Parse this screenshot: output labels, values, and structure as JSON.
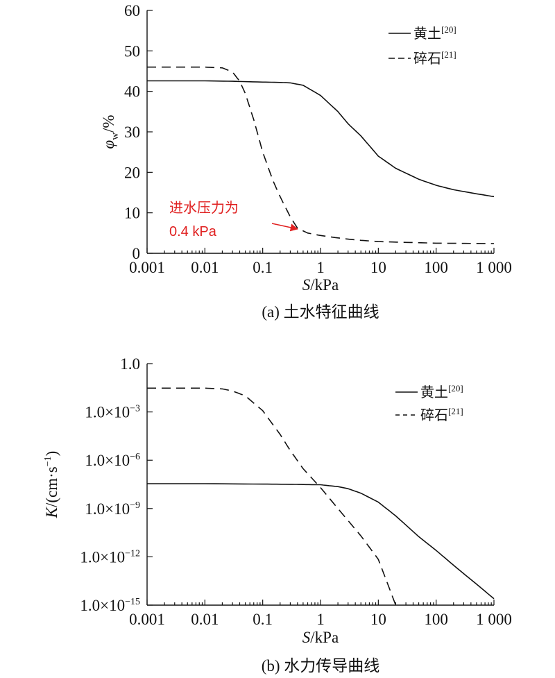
{
  "chart_data": [
    {
      "id": "a",
      "type": "line",
      "caption": "(a) 土水特征曲线",
      "xlabel": "S/kPa",
      "xlabel_parts": {
        "italic": "S",
        "rest": "/kPa"
      },
      "ylabel": "φw/%",
      "ylabel_parts": {
        "sym": "φ",
        "sub": "w",
        "rest": "/%"
      },
      "xscale": "log",
      "xlim": [
        0.001,
        1000
      ],
      "ylim": [
        0,
        60
      ],
      "xticks": [
        {
          "v": 0.001,
          "label": "0.001"
        },
        {
          "v": 0.01,
          "label": "0.01"
        },
        {
          "v": 0.1,
          "label": "0.1"
        },
        {
          "v": 1,
          "label": "1"
        },
        {
          "v": 10,
          "label": "10"
        },
        {
          "v": 100,
          "label": "100"
        },
        {
          "v": 1000,
          "label": "1 000"
        }
      ],
      "yticks": [
        {
          "v": 0,
          "label": "0"
        },
        {
          "v": 10,
          "label": "10"
        },
        {
          "v": 20,
          "label": "20"
        },
        {
          "v": 30,
          "label": "30"
        },
        {
          "v": 40,
          "label": "40"
        },
        {
          "v": 50,
          "label": "50"
        },
        {
          "v": 60,
          "label": "60"
        }
      ],
      "legend_position": "top-right",
      "series": [
        {
          "name": "黄土[20]",
          "label": "黄土",
          "ref": "[20]",
          "style": "solid",
          "x": [
            0.001,
            0.01,
            0.03,
            0.1,
            0.2,
            0.3,
            0.5,
            1,
            2,
            3,
            5,
            10,
            20,
            50,
            100,
            200,
            500,
            1000
          ],
          "y": [
            42.6,
            42.6,
            42.5,
            42.3,
            42.2,
            42.1,
            41.5,
            39,
            35,
            32,
            29,
            24,
            21,
            18.3,
            16.8,
            15.7,
            14.7,
            14
          ]
        },
        {
          "name": "碎石[21]",
          "label": "碎石",
          "ref": "[21]",
          "style": "dashed",
          "x": [
            0.001,
            0.01,
            0.02,
            0.03,
            0.04,
            0.05,
            0.07,
            0.1,
            0.15,
            0.2,
            0.3,
            0.4,
            0.6,
            1,
            2,
            3,
            5,
            10,
            30,
            100,
            1000
          ],
          "y": [
            46,
            46,
            45.8,
            44.8,
            42.5,
            39.5,
            33,
            25,
            18,
            14,
            9,
            6.2,
            5,
            4.4,
            3.8,
            3.5,
            3.2,
            2.9,
            2.7,
            2.5,
            2.4
          ]
        }
      ],
      "annotation": {
        "lines": [
          "进水压力为",
          "0.4 kPa"
        ],
        "color": "#e02020",
        "points_to": {
          "x": 0.4,
          "y": 6
        }
      }
    },
    {
      "id": "b",
      "type": "line",
      "caption": "(b) 水力传导曲线",
      "xlabel": "S/kPa",
      "xlabel_parts": {
        "italic": "S",
        "rest": "/kPa"
      },
      "ylabel": "K/(cm·s⁻¹)",
      "ylabel_parts": {
        "italic": "K",
        "rest": "/(cm·s",
        "sup": "−1",
        "close": ")"
      },
      "xscale": "log",
      "yscale": "log",
      "xlim": [
        0.001,
        1000
      ],
      "ylim": [
        1e-15,
        1
      ],
      "xticks": [
        {
          "v": 0.001,
          "label": "0.001"
        },
        {
          "v": 0.01,
          "label": "0.01"
        },
        {
          "v": 0.1,
          "label": "0.1"
        },
        {
          "v": 1,
          "label": "1"
        },
        {
          "v": 10,
          "label": "10"
        },
        {
          "v": 100,
          "label": "100"
        },
        {
          "v": 1000,
          "label": "1 000"
        }
      ],
      "yticks": [
        {
          "v": 1,
          "base": "1.0",
          "exp": ""
        },
        {
          "v": 0.001,
          "base": "1.0×10",
          "exp": "−3"
        },
        {
          "v": 1e-06,
          "base": "1.0×10",
          "exp": "−6"
        },
        {
          "v": 1e-09,
          "base": "1.0×10",
          "exp": "−9"
        },
        {
          "v": 1e-12,
          "base": "1.0×10",
          "exp": "−12"
        },
        {
          "v": 1e-15,
          "base": "1.0×10",
          "exp": "−15"
        }
      ],
      "legend_position": "top-right",
      "series": [
        {
          "name": "黄土[20]",
          "label": "黄土",
          "ref": "[20]",
          "style": "solid",
          "x": [
            0.001,
            0.01,
            0.1,
            0.3,
            0.5,
            1,
            2,
            3,
            5,
            10,
            20,
            50,
            100,
            200,
            500,
            1000
          ],
          "y": [
            3.5e-08,
            3.5e-08,
            3.3e-08,
            3.2e-08,
            3.1e-08,
            3e-08,
            2.3e-08,
            1.7e-08,
            9e-09,
            2.5e-09,
            3.5e-10,
            1.8e-11,
            2.5e-12,
            3e-13,
            2e-14,
            2.5e-15
          ]
        },
        {
          "name": "碎石[21]",
          "label": "碎石",
          "ref": "[21]",
          "style": "dashed",
          "x": [
            0.001,
            0.01,
            0.02,
            0.03,
            0.05,
            0.1,
            0.2,
            0.3,
            0.5,
            1,
            2,
            5,
            10,
            20
          ],
          "y": [
            0.03,
            0.03,
            0.027,
            0.02,
            0.01,
            0.0012,
            4e-05,
            4e-06,
            3e-07,
            2e-08,
            1e-09,
            2e-11,
            7e-13,
            1e-15
          ]
        }
      ]
    }
  ]
}
